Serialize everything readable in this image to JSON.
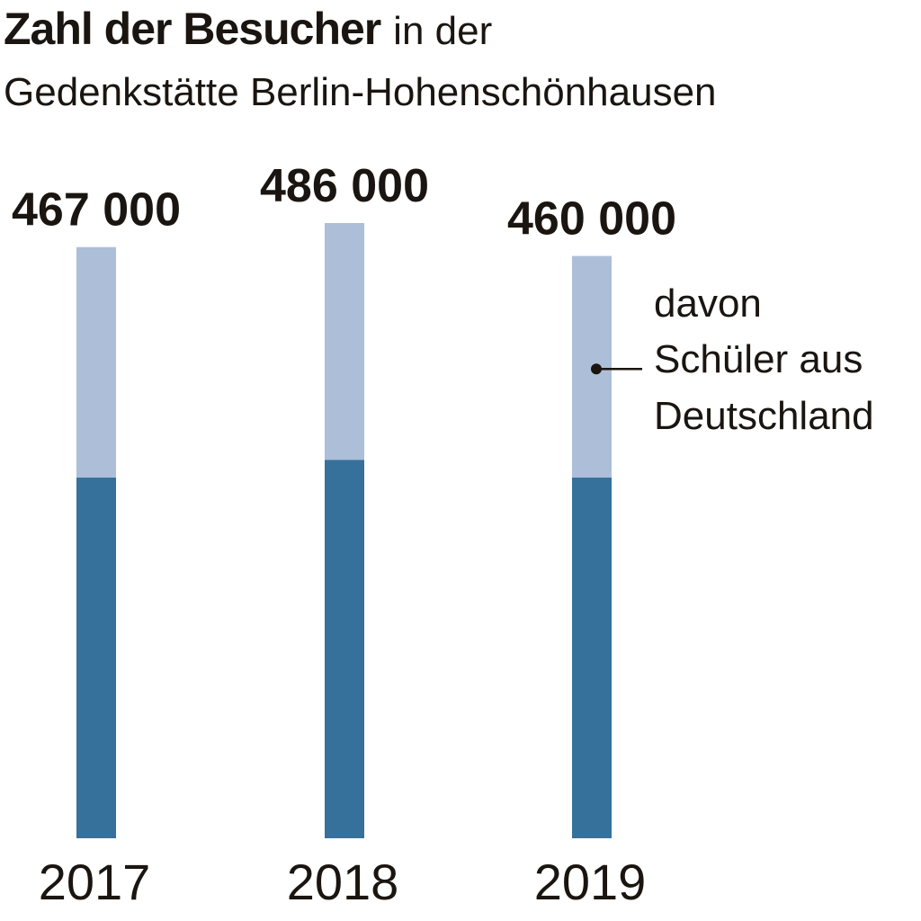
{
  "chart_data": {
    "type": "bar",
    "title_bold": "Zahl der Besucher",
    "title_rest": "in der",
    "subtitle": "Gedenkstätte Berlin-Hohenschönhausen",
    "categories": [
      "2017",
      "2018",
      "2019"
    ],
    "value_labels": [
      "467 000",
      "486 000",
      "460 000"
    ],
    "series": [
      {
        "values": [
          285000,
          299000,
          285000
        ]
      },
      {
        "name": "davon Schüler aus Deutschland",
        "values": [
          182000,
          187000,
          175000
        ]
      }
    ],
    "totals": [
      467000,
      486000,
      460000
    ],
    "annotation": [
      "davon",
      "Schüler aus",
      "Deutschland"
    ],
    "colors": {
      "base": "#36719b",
      "students": "#adbfd8",
      "text": "#1a1510"
    },
    "ylim": [
      0,
      486000
    ],
    "grid": false,
    "legend": "annotation"
  }
}
